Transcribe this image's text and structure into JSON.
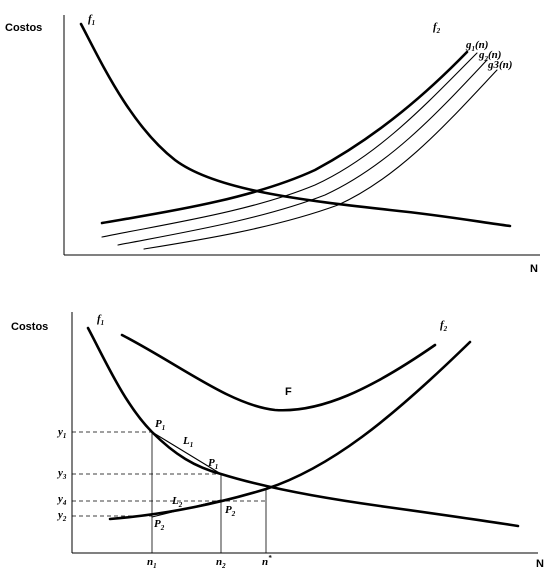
{
  "top_panel": {
    "y_axis_label": "Costos",
    "x_axis_label": "N",
    "f1_label": {
      "base": "f",
      "sub": "1"
    },
    "f2_label": {
      "base": "f",
      "sub": "2"
    },
    "g1_label": {
      "base": "g",
      "sub": "1",
      "suffix": "(n)"
    },
    "g2_label": {
      "base": "g",
      "sub": "2",
      "suffix": "(n)"
    },
    "g3_label": "g3(n)"
  },
  "bottom_panel": {
    "y_axis_label": "Costos",
    "x_axis_label": "N",
    "f1_label": {
      "base": "f",
      "sub": "1"
    },
    "f2_label": {
      "base": "f",
      "sub": "2"
    },
    "F_label": "F",
    "points": {
      "P1_upper": {
        "base": "P",
        "sub": "1"
      },
      "P1_lower": {
        "base": "P",
        "sub": "1"
      },
      "P2_upper": {
        "base": "P",
        "sub": "2"
      },
      "P2_lower": {
        "base": "P",
        "sub": "2"
      },
      "L1": {
        "base": "L",
        "sub": "1"
      },
      "L2": {
        "base": "L",
        "sub": "2"
      }
    },
    "y_ticks": {
      "y1": {
        "base": "y",
        "sub": "1"
      },
      "y3": {
        "base": "y",
        "sub": "3"
      },
      "y4": {
        "base": "y",
        "sub": "4"
      },
      "y2": {
        "base": "y",
        "sub": "2"
      }
    },
    "x_ticks": {
      "n1": {
        "base": "n",
        "sub": "1"
      },
      "n2": {
        "base": "n",
        "sub": "2"
      },
      "nstar": {
        "base": "n",
        "sup": "*"
      }
    }
  }
}
